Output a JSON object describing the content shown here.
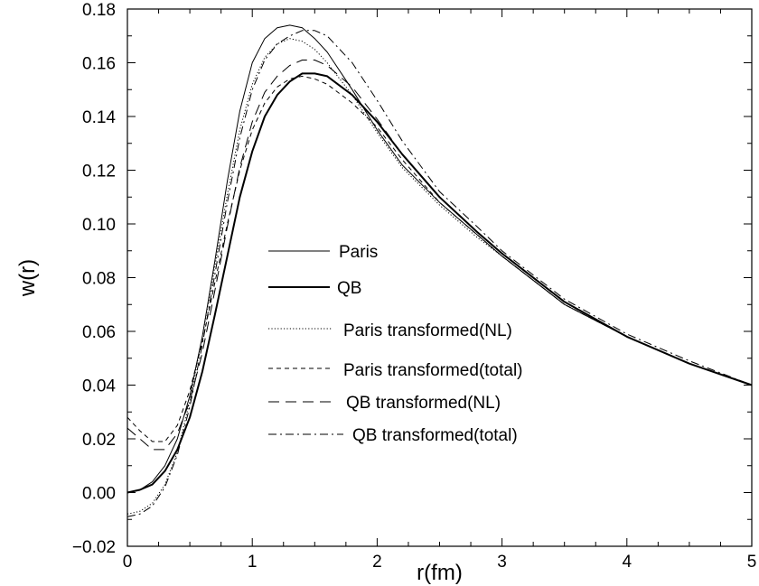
{
  "chart_data": {
    "type": "line",
    "title": "",
    "xlabel": "r(fm)",
    "ylabel": "w(r)",
    "xlim": [
      0,
      5
    ],
    "ylim": [
      -0.02,
      0.18
    ],
    "x_ticks": [
      0,
      1,
      2,
      3,
      4,
      5
    ],
    "x_tick_labels": [
      "0",
      "1",
      "2",
      "3",
      "4",
      "5"
    ],
    "y_ticks": [
      -0.02,
      0.0,
      0.02,
      0.04,
      0.06,
      0.08,
      0.1,
      0.12,
      0.14,
      0.16,
      0.18
    ],
    "y_tick_labels": [
      "−0.02",
      "0.00",
      "0.02",
      "0.04",
      "0.06",
      "0.08",
      "0.10",
      "0.12",
      "0.14",
      "0.16",
      "0.18"
    ],
    "grid": false,
    "legend_position": "center-left",
    "series": [
      {
        "name": "Paris",
        "style": "thin-solid",
        "x": [
          0,
          0.1,
          0.2,
          0.3,
          0.4,
          0.5,
          0.6,
          0.7,
          0.8,
          0.9,
          1.0,
          1.1,
          1.2,
          1.3,
          1.4,
          1.5,
          1.6,
          1.8,
          2.0,
          2.2,
          2.5,
          2.8,
          3.0,
          3.5,
          4.0,
          4.5,
          5.0
        ],
        "y": [
          0.0,
          0.001,
          0.004,
          0.01,
          0.02,
          0.036,
          0.058,
          0.086,
          0.116,
          0.142,
          0.16,
          0.169,
          0.173,
          0.174,
          0.173,
          0.169,
          0.164,
          0.15,
          0.135,
          0.122,
          0.108,
          0.096,
          0.088,
          0.07,
          0.058,
          0.048,
          0.04
        ]
      },
      {
        "name": "QB",
        "style": "thick-solid",
        "x": [
          0,
          0.1,
          0.2,
          0.3,
          0.4,
          0.5,
          0.6,
          0.7,
          0.8,
          0.9,
          1.0,
          1.1,
          1.2,
          1.3,
          1.4,
          1.5,
          1.6,
          1.8,
          2.0,
          2.2,
          2.5,
          2.8,
          3.0,
          3.5,
          4.0,
          4.5,
          5.0
        ],
        "y": [
          0.0,
          0.001,
          0.003,
          0.008,
          0.016,
          0.028,
          0.045,
          0.066,
          0.088,
          0.11,
          0.127,
          0.14,
          0.148,
          0.153,
          0.156,
          0.156,
          0.155,
          0.148,
          0.138,
          0.126,
          0.11,
          0.097,
          0.089,
          0.071,
          0.058,
          0.048,
          0.04
        ]
      },
      {
        "name": "Paris transformed(NL)",
        "style": "dotted",
        "x": [
          0,
          0.1,
          0.2,
          0.3,
          0.4,
          0.5,
          0.6,
          0.7,
          0.8,
          0.9,
          1.0,
          1.1,
          1.2,
          1.3,
          1.4,
          1.5,
          1.6,
          1.8,
          2.0,
          2.2,
          2.5,
          2.8,
          3.0,
          3.5,
          4.0,
          4.5,
          5.0
        ],
        "y": [
          -0.008,
          -0.007,
          -0.004,
          0.003,
          0.015,
          0.034,
          0.058,
          0.084,
          0.111,
          0.135,
          0.152,
          0.162,
          0.167,
          0.169,
          0.168,
          0.165,
          0.16,
          0.148,
          0.134,
          0.121,
          0.107,
          0.095,
          0.088,
          0.07,
          0.058,
          0.048,
          0.04
        ]
      },
      {
        "name": "Paris transformed(total)",
        "style": "dashed",
        "x": [
          0,
          0.1,
          0.2,
          0.3,
          0.4,
          0.5,
          0.6,
          0.7,
          0.8,
          0.9,
          1.0,
          1.1,
          1.2,
          1.3,
          1.4,
          1.5,
          1.6,
          1.8,
          2.0,
          2.2,
          2.5,
          2.8,
          3.0,
          3.5,
          4.0,
          4.5,
          5.0
        ],
        "y": [
          0.028,
          0.023,
          0.019,
          0.019,
          0.025,
          0.038,
          0.056,
          0.078,
          0.1,
          0.12,
          0.135,
          0.145,
          0.151,
          0.154,
          0.155,
          0.154,
          0.152,
          0.145,
          0.136,
          0.124,
          0.108,
          0.096,
          0.088,
          0.07,
          0.058,
          0.048,
          0.04
        ]
      },
      {
        "name": "QB transformed(NL)",
        "style": "long-dashed",
        "x": [
          0,
          0.1,
          0.2,
          0.3,
          0.4,
          0.5,
          0.6,
          0.7,
          0.8,
          0.9,
          1.0,
          1.1,
          1.2,
          1.3,
          1.4,
          1.5,
          1.6,
          1.8,
          2.0,
          2.2,
          2.5,
          2.8,
          3.0,
          3.5,
          4.0,
          4.5,
          5.0
        ],
        "y": [
          0.024,
          0.02,
          0.016,
          0.016,
          0.022,
          0.034,
          0.052,
          0.075,
          0.099,
          0.121,
          0.138,
          0.149,
          0.155,
          0.159,
          0.161,
          0.161,
          0.159,
          0.151,
          0.139,
          0.126,
          0.11,
          0.097,
          0.089,
          0.071,
          0.058,
          0.048,
          0.04
        ]
      },
      {
        "name": "QB transformed(total)",
        "style": "dash-dot",
        "x": [
          0,
          0.1,
          0.2,
          0.3,
          0.4,
          0.5,
          0.6,
          0.7,
          0.8,
          0.9,
          1.0,
          1.1,
          1.2,
          1.3,
          1.4,
          1.5,
          1.6,
          1.8,
          2.0,
          2.2,
          2.5,
          2.8,
          3.0,
          3.5,
          4.0,
          4.5,
          5.0
        ],
        "y": [
          -0.009,
          -0.008,
          -0.005,
          0.002,
          0.014,
          0.032,
          0.055,
          0.081,
          0.108,
          0.132,
          0.15,
          0.161,
          0.167,
          0.17,
          0.172,
          0.172,
          0.17,
          0.16,
          0.146,
          0.131,
          0.112,
          0.099,
          0.09,
          0.072,
          0.059,
          0.049,
          0.04
        ]
      }
    ]
  }
}
